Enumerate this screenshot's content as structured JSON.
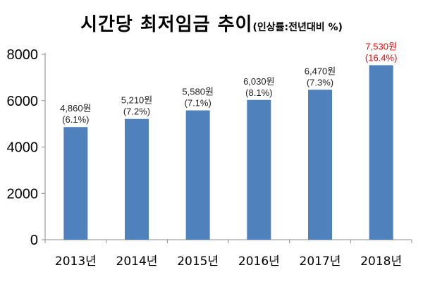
{
  "chart_data": {
    "type": "bar",
    "title": "시간당 최저임금 추이",
    "subtitle": "(인상률:전년대비 %)",
    "categories": [
      "2013년",
      "2014년",
      "2015년",
      "2016년",
      "2017년",
      "2018년"
    ],
    "values": [
      4860,
      5210,
      5580,
      6030,
      6470,
      7530
    ],
    "value_labels": [
      "4,860원",
      "5,210원",
      "5,580원",
      "6,030원",
      "6,470원",
      "7,530원"
    ],
    "growth_labels": [
      "(6.1%)",
      "(7.2%)",
      "(7.1%)",
      "(8.1%)",
      "(7.3%)",
      "(16.4%)"
    ],
    "ylim": [
      0,
      8000
    ],
    "yticks": [
      0,
      2000,
      4000,
      6000,
      8000
    ],
    "xlabel": "",
    "ylabel": "",
    "grid": false,
    "colors": {
      "bar": "#4f81bd",
      "highlight_label": "#ff0000",
      "axis": "#8c8c8c"
    }
  }
}
